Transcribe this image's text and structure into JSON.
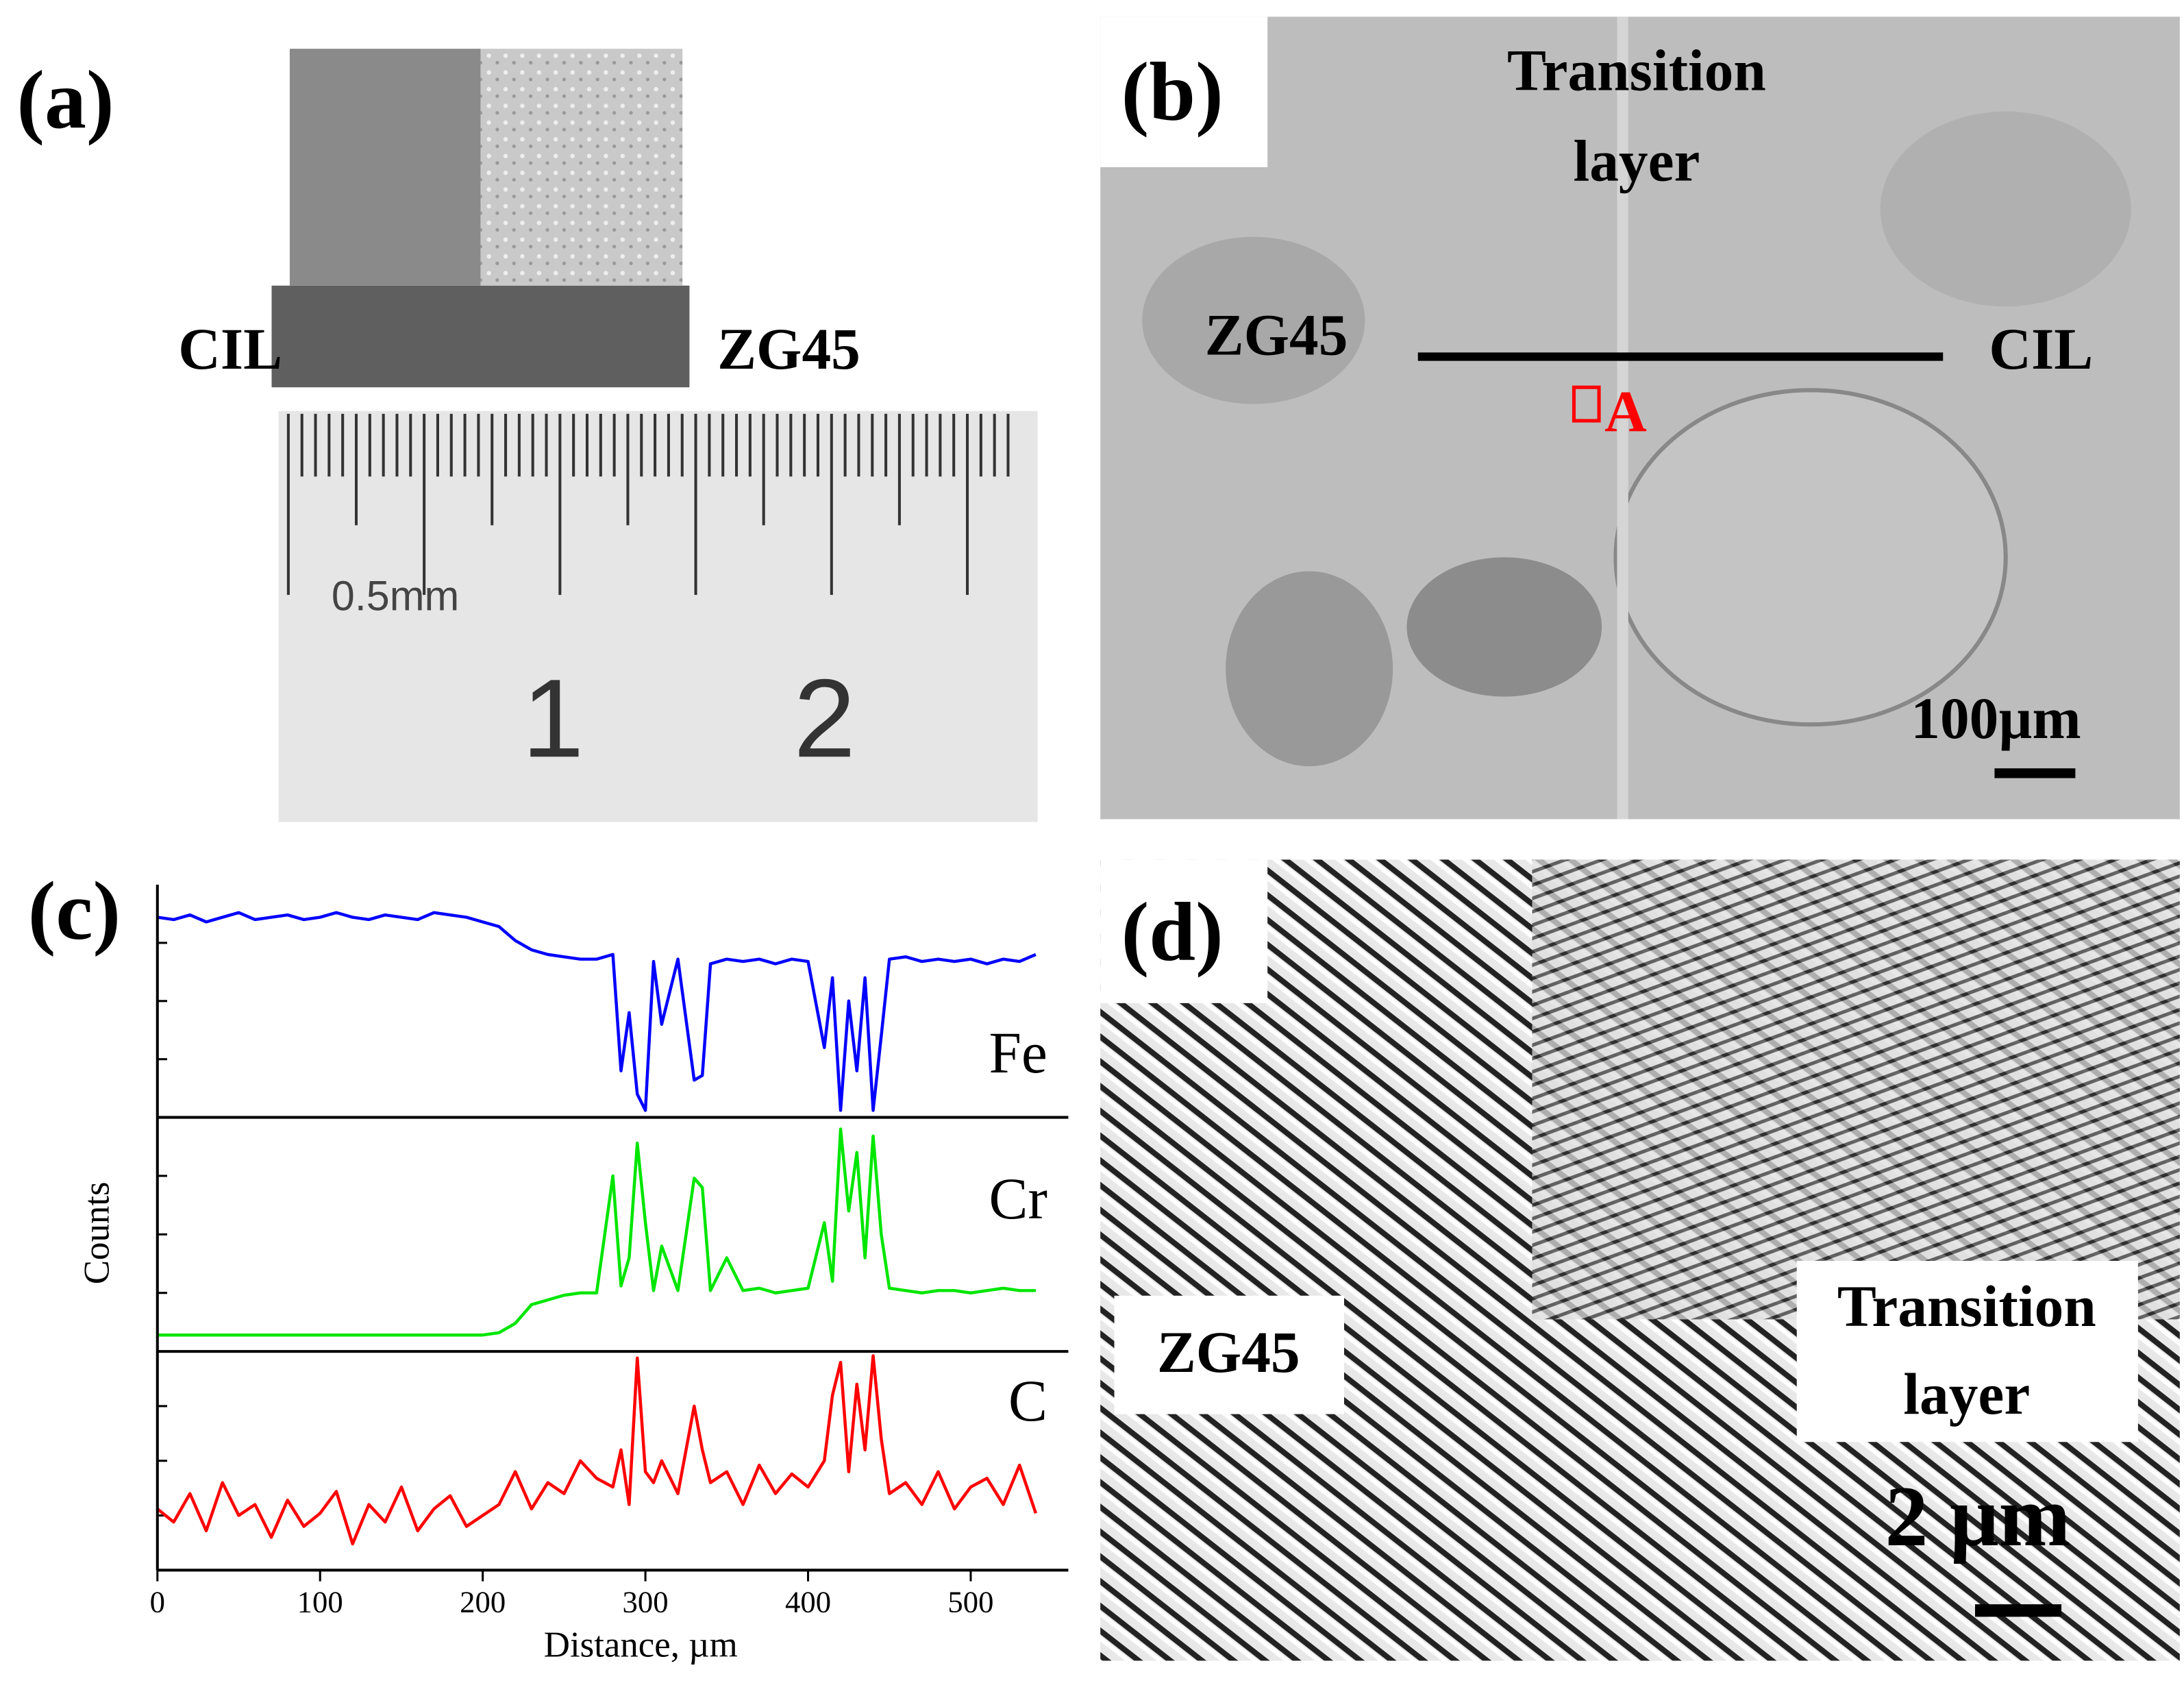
{
  "panels": {
    "a": {
      "label": "(a)",
      "left": "CIL",
      "right": "ZG45",
      "ruler_unit": "0.5mm",
      "ruler_numbers": [
        "1",
        "2"
      ]
    },
    "b": {
      "label": "(b)",
      "title": [
        "Transition",
        "layer"
      ],
      "left": "ZG45",
      "right": "CIL",
      "marker": "A",
      "scale": "100µm"
    },
    "d": {
      "label": "(d)",
      "left": "ZG45",
      "right": [
        "Transition",
        "layer"
      ],
      "scale": "2 μm"
    }
  },
  "chart_data": {
    "type": "line",
    "panel_label": "(c)",
    "y_label": "Counts",
    "x_label": "Distance, µm",
    "x": [
      0,
      10,
      20,
      30,
      40,
      50,
      60,
      70,
      80,
      90,
      100,
      110,
      120,
      130,
      140,
      150,
      160,
      170,
      180,
      190,
      200,
      210,
      220,
      230,
      240,
      250,
      260,
      270,
      280,
      285,
      290,
      295,
      300,
      305,
      310,
      320,
      330,
      335,
      340,
      350,
      360,
      370,
      380,
      390,
      400,
      410,
      415,
      420,
      425,
      430,
      435,
      440,
      445,
      450,
      460,
      470,
      480,
      490,
      500,
      510,
      520,
      530,
      540
    ],
    "xlim": [
      0,
      560
    ],
    "xticks": [
      0,
      100,
      200,
      300,
      400,
      500
    ],
    "ylim": [
      0,
      100
    ],
    "yticks": [
      25,
      50,
      75
    ],
    "series": [
      {
        "name": "Fe",
        "color": "#0000ff",
        "values": [
          86,
          85,
          87,
          84,
          86,
          88,
          85,
          86,
          87,
          85,
          86,
          88,
          86,
          85,
          87,
          86,
          85,
          88,
          87,
          86,
          84,
          82,
          76,
          72,
          70,
          69,
          68,
          68,
          70,
          20,
          45,
          10,
          3,
          67,
          40,
          68,
          16,
          18,
          66,
          68,
          67,
          68,
          66,
          68,
          67,
          30,
          60,
          3,
          50,
          20,
          60,
          3,
          35,
          68,
          69,
          67,
          68,
          67,
          68,
          66,
          68,
          67,
          70
        ]
      },
      {
        "name": "Cr",
        "color": "#00e600",
        "values": [
          7,
          7,
          7,
          7,
          7,
          7,
          7,
          7,
          7,
          7,
          7,
          7,
          7,
          7,
          7,
          7,
          7,
          7,
          7,
          7,
          7,
          8,
          12,
          20,
          22,
          24,
          25,
          25,
          75,
          28,
          40,
          89,
          55,
          26,
          45,
          26,
          74,
          70,
          26,
          40,
          26,
          27,
          25,
          26,
          27,
          55,
          30,
          95,
          60,
          85,
          40,
          92,
          50,
          27,
          26,
          25,
          26,
          26,
          25,
          26,
          27,
          26,
          26
        ]
      },
      {
        "name": "C",
        "color": "#ff0000",
        "values": [
          28,
          22,
          35,
          18,
          40,
          25,
          30,
          15,
          32,
          20,
          26,
          36,
          12,
          30,
          22,
          38,
          18,
          28,
          34,
          20,
          25,
          30,
          45,
          28,
          40,
          35,
          50,
          42,
          38,
          55,
          30,
          97,
          45,
          40,
          50,
          35,
          75,
          55,
          40,
          45,
          30,
          48,
          35,
          44,
          38,
          50,
          80,
          95,
          45,
          85,
          55,
          98,
          60,
          35,
          40,
          30,
          45,
          28,
          38,
          42,
          30,
          48,
          26
        ]
      }
    ]
  }
}
